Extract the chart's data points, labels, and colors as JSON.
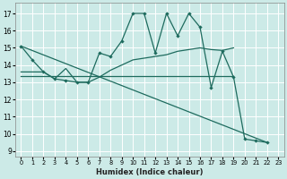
{
  "xlabel": "Humidex (Indice chaleur)",
  "bg_color": "#cceae7",
  "grid_color": "#ffffff",
  "line_color": "#1e6b5e",
  "xlim": [
    -0.5,
    23.5
  ],
  "ylim": [
    8.7,
    17.6
  ],
  "yticks": [
    9,
    10,
    11,
    12,
    13,
    14,
    15,
    16,
    17
  ],
  "xticks": [
    0,
    1,
    2,
    3,
    4,
    5,
    6,
    7,
    8,
    9,
    10,
    11,
    12,
    13,
    14,
    15,
    16,
    17,
    18,
    19,
    20,
    21,
    22,
    23
  ],
  "series_main": {
    "x": [
      0,
      1,
      2,
      3,
      4,
      5,
      6,
      7,
      8,
      9,
      10,
      11,
      12,
      13,
      14,
      15,
      16,
      17,
      18,
      19,
      20,
      21,
      22
    ],
    "y": [
      15.1,
      14.3,
      13.6,
      13.2,
      13.1,
      13.0,
      13.0,
      14.7,
      14.5,
      15.4,
      17.0,
      17.0,
      14.7,
      17.0,
      15.7,
      17.0,
      16.2,
      12.7,
      14.8,
      13.3,
      9.7,
      9.6,
      9.5
    ]
  },
  "series_flat": {
    "x": [
      0,
      19
    ],
    "y": [
      13.35,
      13.35
    ]
  },
  "series_rising": {
    "x": [
      0,
      2,
      3,
      4,
      5,
      6,
      7,
      8,
      9,
      10,
      11,
      12,
      13,
      14,
      15,
      16,
      17,
      18,
      19
    ],
    "y": [
      13.6,
      13.6,
      13.2,
      13.8,
      13.0,
      13.0,
      13.3,
      13.7,
      14.0,
      14.3,
      14.4,
      14.5,
      14.6,
      14.8,
      14.9,
      15.0,
      14.9,
      14.85,
      15.0
    ]
  },
  "series_diagonal": {
    "x": [
      0,
      22
    ],
    "y": [
      15.1,
      9.5
    ]
  }
}
